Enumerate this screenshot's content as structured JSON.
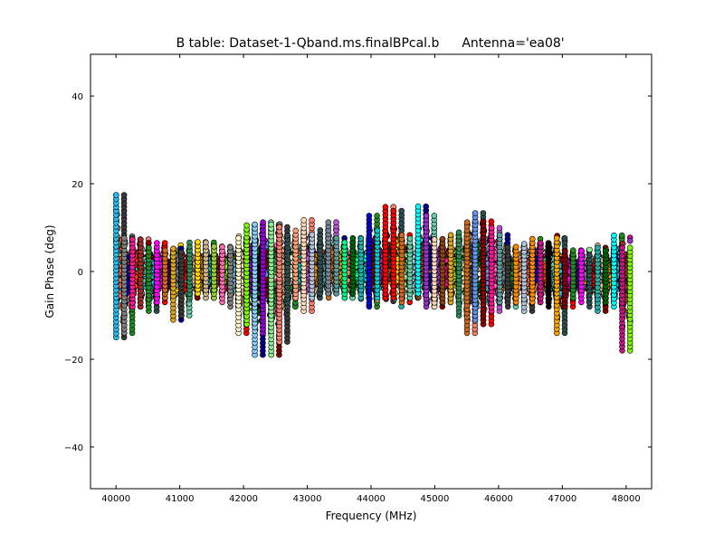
{
  "chart_data": {
    "type": "scatter",
    "title_left": "B table: Dataset-1-Qband.ms.finalBPcal.b",
    "title_right": "Antenna='ea08'",
    "xlabel": "Frequency (MHz)",
    "ylabel": "Gain Phase (deg)",
    "xlim": [
      39600,
      48400
    ],
    "ylim": [
      -49.5,
      49.5
    ],
    "xticks": [
      40000,
      41000,
      42000,
      43000,
      44000,
      45000,
      46000,
      47000,
      48000
    ],
    "xtick_labels": [
      "40000",
      "41000",
      "42000",
      "43000",
      "44000",
      "45000",
      "46000",
      "47000",
      "48000"
    ],
    "yticks": [
      -40,
      -20,
      0,
      20,
      40
    ],
    "ytick_labels": [
      "−40",
      "−20",
      "0",
      "20",
      "40"
    ],
    "grid": false,
    "legend": "none",
    "marker": "circle",
    "marker_edge_color": "#000000",
    "series_colors": [
      "#1fbfef",
      "#808080",
      "#ff1493",
      "#3a3a3a",
      "#d2691e",
      "#2e8b57",
      "#a52a2a",
      "#ff00ff",
      "#228b22",
      "#9acd32",
      "#ffd700",
      "#daa520",
      "#d2b48c",
      "#7cfc00",
      "#4b0082",
      "#ffa07a",
      "#f5deb3",
      "#90ee90",
      "#fa8072",
      "#fffacd",
      "#87cefa",
      "#778899",
      "#ff6347",
      "#2f4f4f",
      "#b0c4de",
      "#00ff7f",
      "#00ced1",
      "#ffdab9",
      "#ff0000",
      "#0000cd",
      "#006400",
      "#8b4513",
      "#00ffff",
      "#ba55d3",
      "#9400d3",
      "#deb887",
      "#ff4500",
      "#6495ed",
      "#00008b",
      "#8b0000",
      "#ff8c00",
      "#000000",
      "#ffa500",
      "#66cdaa",
      "#ff69b4",
      "#9932cc",
      "#c71585",
      "#5f9ea0",
      "#800000",
      "#20b2aa"
    ],
    "spw_centers": [
      40064,
      40192,
      40320,
      40448,
      40576,
      40704,
      40832,
      40960,
      41088,
      41216,
      41344,
      41472,
      41600,
      41728,
      41856,
      41984,
      42112,
      42240,
      42368,
      42496,
      42624,
      42752,
      42880,
      43008,
      43136,
      43264,
      43392,
      43520,
      43648,
      43776,
      43904,
      44032,
      44160,
      44288,
      44416,
      44544,
      44672,
      44800,
      44928,
      45056,
      45184,
      45312,
      45440,
      45568,
      45696,
      45824,
      45952,
      46080,
      46208,
      46336,
      46464,
      46592,
      46720,
      46848,
      46976,
      47104,
      47232,
      47360,
      47488,
      47616,
      47744,
      47872,
      48000
    ],
    "spw_width_mhz": 128,
    "phase_ranges": [
      {
        "center": 40064,
        "min": -15,
        "max": 18,
        "color": "#1fbfef"
      },
      {
        "center": 40192,
        "min": -14,
        "max": 8,
        "color": "#808080"
      },
      {
        "center": 40320,
        "min": -8,
        "max": 8,
        "color": "#ff1493"
      },
      {
        "center": 40448,
        "min": -8,
        "max": 8,
        "color": "#a52a2a"
      },
      {
        "center": 40576,
        "min": -9,
        "max": 6,
        "color": "#228b22"
      },
      {
        "center": 40704,
        "min": -7,
        "max": 7,
        "color": "#ff00ff"
      },
      {
        "center": 40832,
        "min": -6,
        "max": 5,
        "color": "#d2691e"
      },
      {
        "center": 40960,
        "min": -11,
        "max": 6,
        "color": "#daa520"
      },
      {
        "center": 41088,
        "min": -10,
        "max": 5,
        "color": "#3a3a3a"
      },
      {
        "center": 41216,
        "min": -6,
        "max": 7,
        "color": "#2e8b57"
      },
      {
        "center": 41344,
        "min": -5,
        "max": 7,
        "color": "#ffd700"
      },
      {
        "center": 41472,
        "min": -6,
        "max": 7,
        "color": "#d2b48c"
      },
      {
        "center": 41600,
        "min": -6,
        "max": 6,
        "color": "#9acd32"
      },
      {
        "center": 41728,
        "min": -7,
        "max": 6,
        "color": "#ff69b4"
      },
      {
        "center": 41856,
        "min": -8,
        "max": 6,
        "color": "#808080"
      },
      {
        "center": 41984,
        "min": -14,
        "max": 8,
        "color": "#fffacd"
      },
      {
        "center": 42112,
        "min": -12,
        "max": 11,
        "color": "#7cfc00"
      },
      {
        "center": 42240,
        "min": -19,
        "max": 11,
        "color": "#87cefa"
      },
      {
        "center": 42368,
        "min": -14,
        "max": 12,
        "color": "#9400d3"
      },
      {
        "center": 42496,
        "min": -19,
        "max": 11,
        "color": "#90ee90"
      },
      {
        "center": 42624,
        "min": -16,
        "max": 11,
        "color": "#fa8072"
      },
      {
        "center": 42752,
        "min": -8,
        "max": 9,
        "color": "#2f4f4f"
      },
      {
        "center": 42880,
        "min": -6,
        "max": 10,
        "color": "#ffa07a"
      },
      {
        "center": 43008,
        "min": -9,
        "max": 12,
        "color": "#ffdab9"
      },
      {
        "center": 43136,
        "min": -6,
        "max": 9,
        "color": "#b0c4de"
      },
      {
        "center": 43264,
        "min": -5,
        "max": 10,
        "color": "#2f4f4f"
      },
      {
        "center": 43392,
        "min": -5,
        "max": 12,
        "color": "#778899"
      },
      {
        "center": 43520,
        "min": -5,
        "max": 8,
        "color": "#5f9ea0"
      },
      {
        "center": 43648,
        "min": -6,
        "max": 7,
        "color": "#00ff7f"
      },
      {
        "center": 43776,
        "min": -5,
        "max": 8,
        "color": "#006400"
      },
      {
        "center": 43904,
        "min": -6,
        "max": 8,
        "color": "#20b2aa"
      },
      {
        "center": 44032,
        "min": -8,
        "max": 13,
        "color": "#0000cd"
      },
      {
        "center": 44160,
        "min": -6,
        "max": 10,
        "color": "#00ced1"
      },
      {
        "center": 44288,
        "min": -6,
        "max": 15,
        "color": "#ff0000"
      },
      {
        "center": 44416,
        "min": -6,
        "max": 14,
        "color": "#ff0000"
      },
      {
        "center": 44544,
        "min": -7,
        "max": 9,
        "color": "#d2691e"
      },
      {
        "center": 44672,
        "min": -6,
        "max": 8,
        "color": "#66cdaa"
      },
      {
        "center": 44800,
        "min": -5,
        "max": 15,
        "color": "#00ffff"
      },
      {
        "center": 44928,
        "min": -8,
        "max": 13,
        "color": "#9932cc"
      },
      {
        "center": 45056,
        "min": -8,
        "max": 8,
        "color": "#ffdab9"
      },
      {
        "center": 45184,
        "min": -7,
        "max": 8,
        "color": "#8b4513"
      },
      {
        "center": 45312,
        "min": -7,
        "max": 9,
        "color": "#daa520"
      },
      {
        "center": 45440,
        "min": -10,
        "max": 9,
        "color": "#2e8b57"
      },
      {
        "center": 45568,
        "min": -14,
        "max": 12,
        "color": "#d2691e"
      },
      {
        "center": 45696,
        "min": -11,
        "max": 14,
        "color": "#6495ed"
      },
      {
        "center": 45824,
        "min": -12,
        "max": 12,
        "color": "#8b0000"
      },
      {
        "center": 45952,
        "min": -9,
        "max": 10,
        "color": "#ff1493"
      },
      {
        "center": 46080,
        "min": -7,
        "max": 9,
        "color": "#5f9ea0"
      },
      {
        "center": 46208,
        "min": -8,
        "max": 6,
        "color": "#3a3a3a"
      },
      {
        "center": 46336,
        "min": -7,
        "max": 6,
        "color": "#ff8c00"
      },
      {
        "center": 46464,
        "min": -9,
        "max": 7,
        "color": "#b0c4de"
      },
      {
        "center": 46592,
        "min": -7,
        "max": 8,
        "color": "#ff8c00"
      },
      {
        "center": 46720,
        "min": -7,
        "max": 7,
        "color": "#c71585"
      },
      {
        "center": 46848,
        "min": -8,
        "max": 7,
        "color": "#000000"
      },
      {
        "center": 46976,
        "min": -14,
        "max": 8,
        "color": "#ffa500"
      },
      {
        "center": 47104,
        "min": -8,
        "max": 5,
        "color": "#800000"
      },
      {
        "center": 47232,
        "min": -6,
        "max": 5,
        "color": "#228b22"
      },
      {
        "center": 47360,
        "min": -7,
        "max": 5,
        "color": "#ff00ff"
      },
      {
        "center": 47488,
        "min": -8,
        "max": 4,
        "color": "#2f4f4f"
      },
      {
        "center": 47616,
        "min": -9,
        "max": 6,
        "color": "#20b2aa"
      },
      {
        "center": 47744,
        "min": -7,
        "max": 5,
        "color": "#006400"
      },
      {
        "center": 47872,
        "min": -8,
        "max": 9,
        "color": "#00ffff"
      },
      {
        "center": 48000,
        "min": -18,
        "max": 6,
        "color": "#c71585"
      }
    ]
  }
}
